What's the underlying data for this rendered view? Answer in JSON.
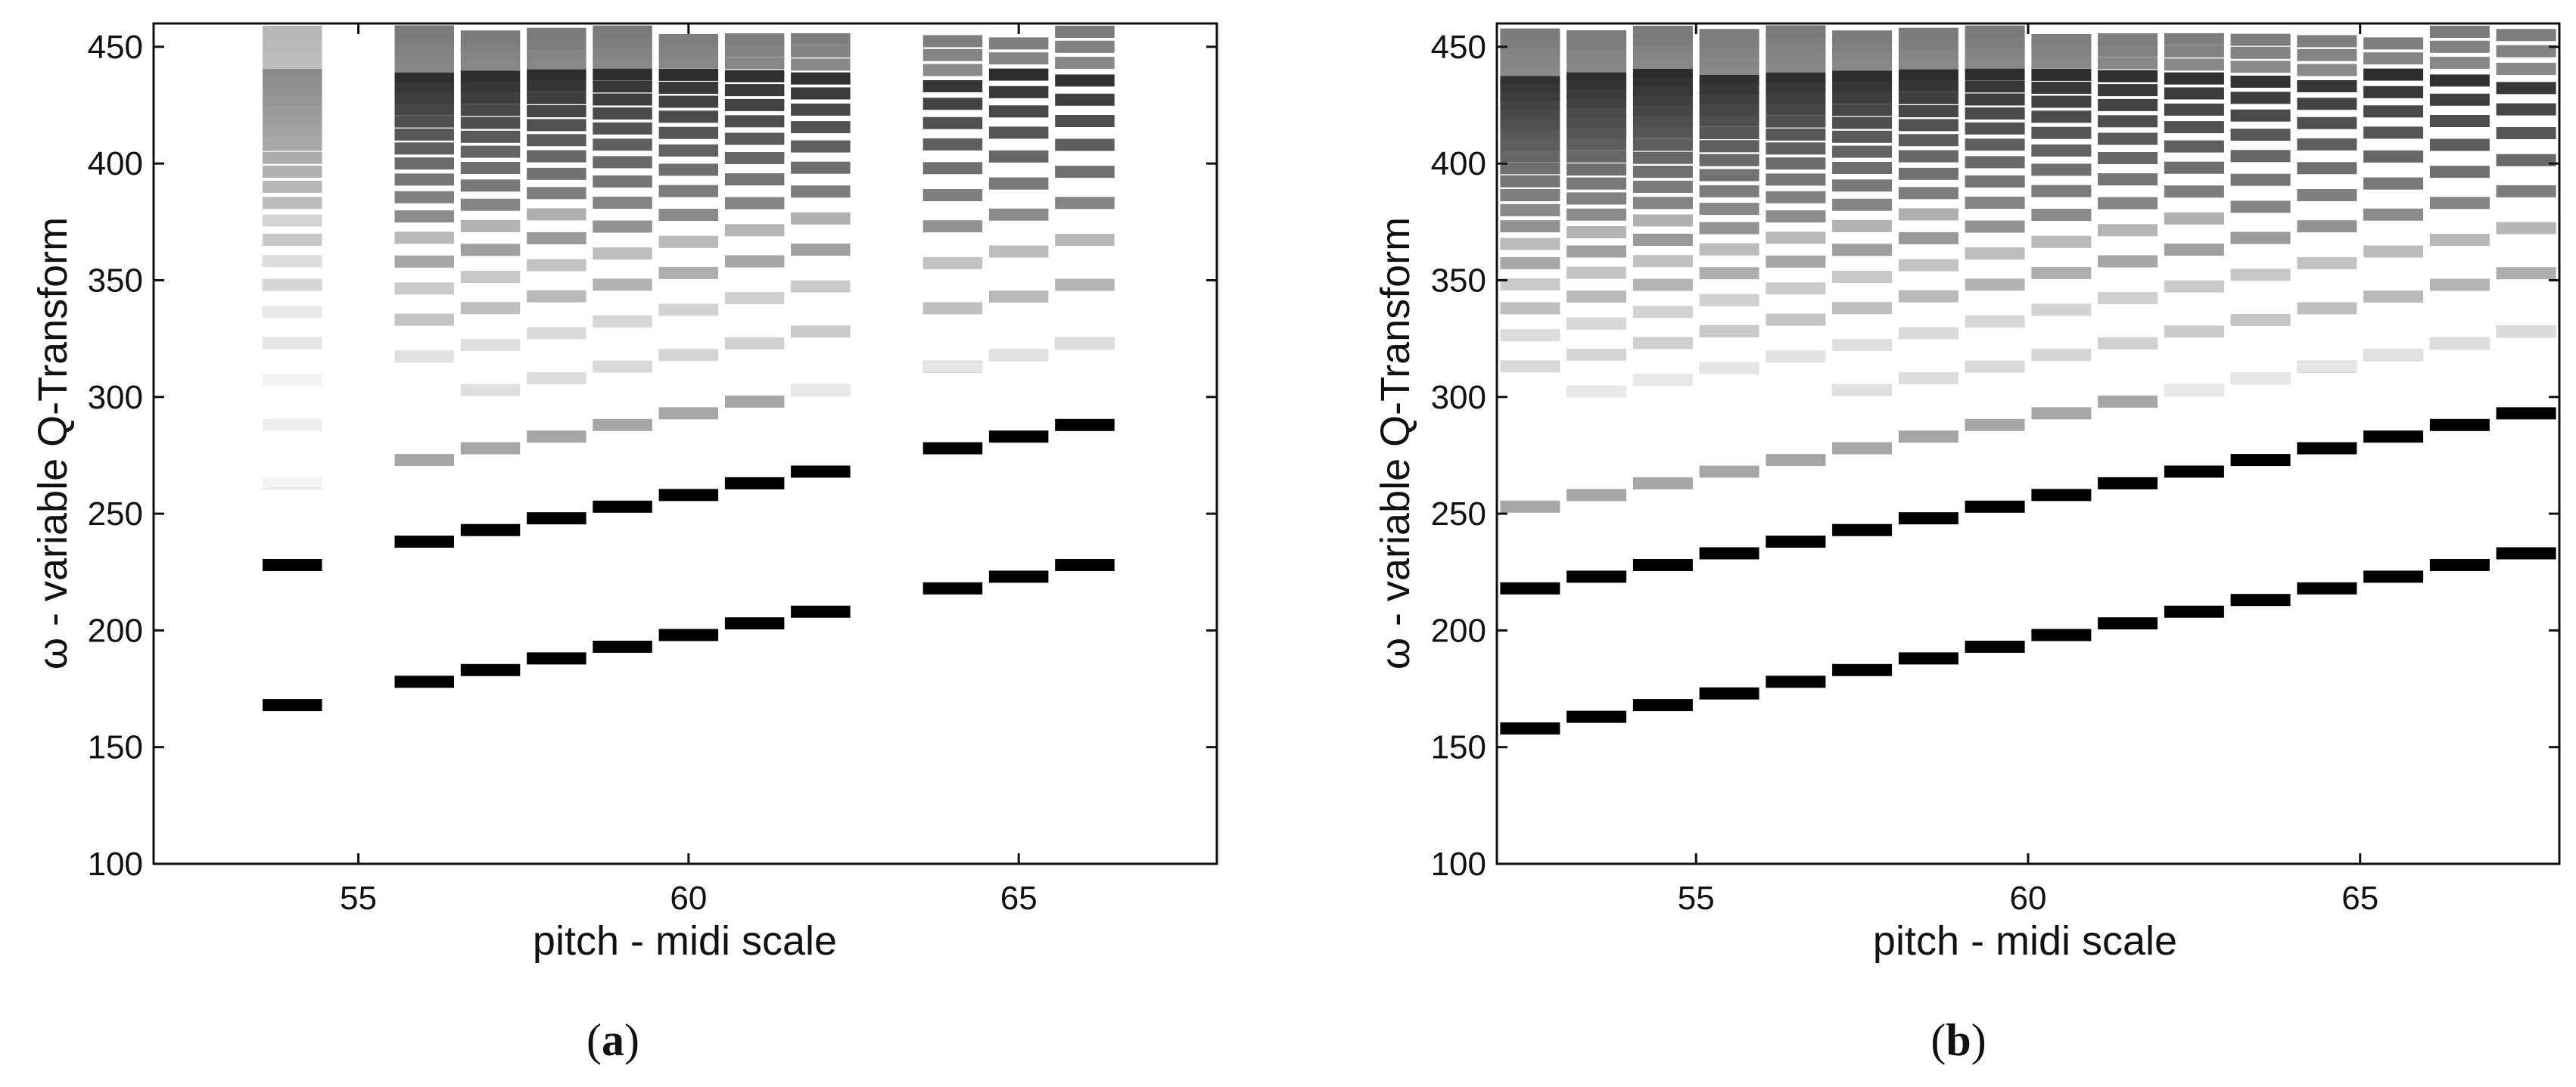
{
  "chart_data": [
    {
      "type": "heatmap",
      "caption": "a",
      "xlabel": "pitch - midi scale",
      "ylabel": "ω - variable Q-Transform",
      "xlim": [
        51.9,
        68.0
      ],
      "ylim": [
        100,
        460
      ],
      "xticks": [
        "55",
        "60",
        "65"
      ],
      "yticks": [
        "100",
        "150",
        "200",
        "250",
        "300",
        "350",
        "400",
        "450"
      ],
      "grid": false,
      "colormap": "grayscale (white = 0, black = 1)",
      "notes_played": [
        54,
        56,
        57,
        58,
        59,
        60,
        61,
        62,
        64,
        65,
        66
      ],
      "fundamental_bins": [
        168,
        178,
        183,
        188,
        193,
        198,
        203,
        208,
        218,
        223,
        228
      ],
      "second_partial_bins": [
        228,
        238,
        243,
        248,
        253,
        258,
        263,
        268,
        278,
        283,
        288
      ]
    },
    {
      "type": "heatmap",
      "caption": "b",
      "xlabel": "pitch - midi scale",
      "ylabel": "ω - variable Q-Transform",
      "xlim": [
        52.0,
        68.0
      ],
      "ylim": [
        100,
        460
      ],
      "xticks": [
        "55",
        "60",
        "65"
      ],
      "yticks": [
        "100",
        "150",
        "200",
        "250",
        "300",
        "350",
        "400",
        "450"
      ],
      "grid": false,
      "colormap": "grayscale (white = 0, black = 1)",
      "pitch_range": [
        52,
        67
      ],
      "fundamental_bin_at_pitch_52": 158,
      "second_partial_bin_at_pitch_52": 218,
      "bins_per_semitone": 5
    }
  ]
}
